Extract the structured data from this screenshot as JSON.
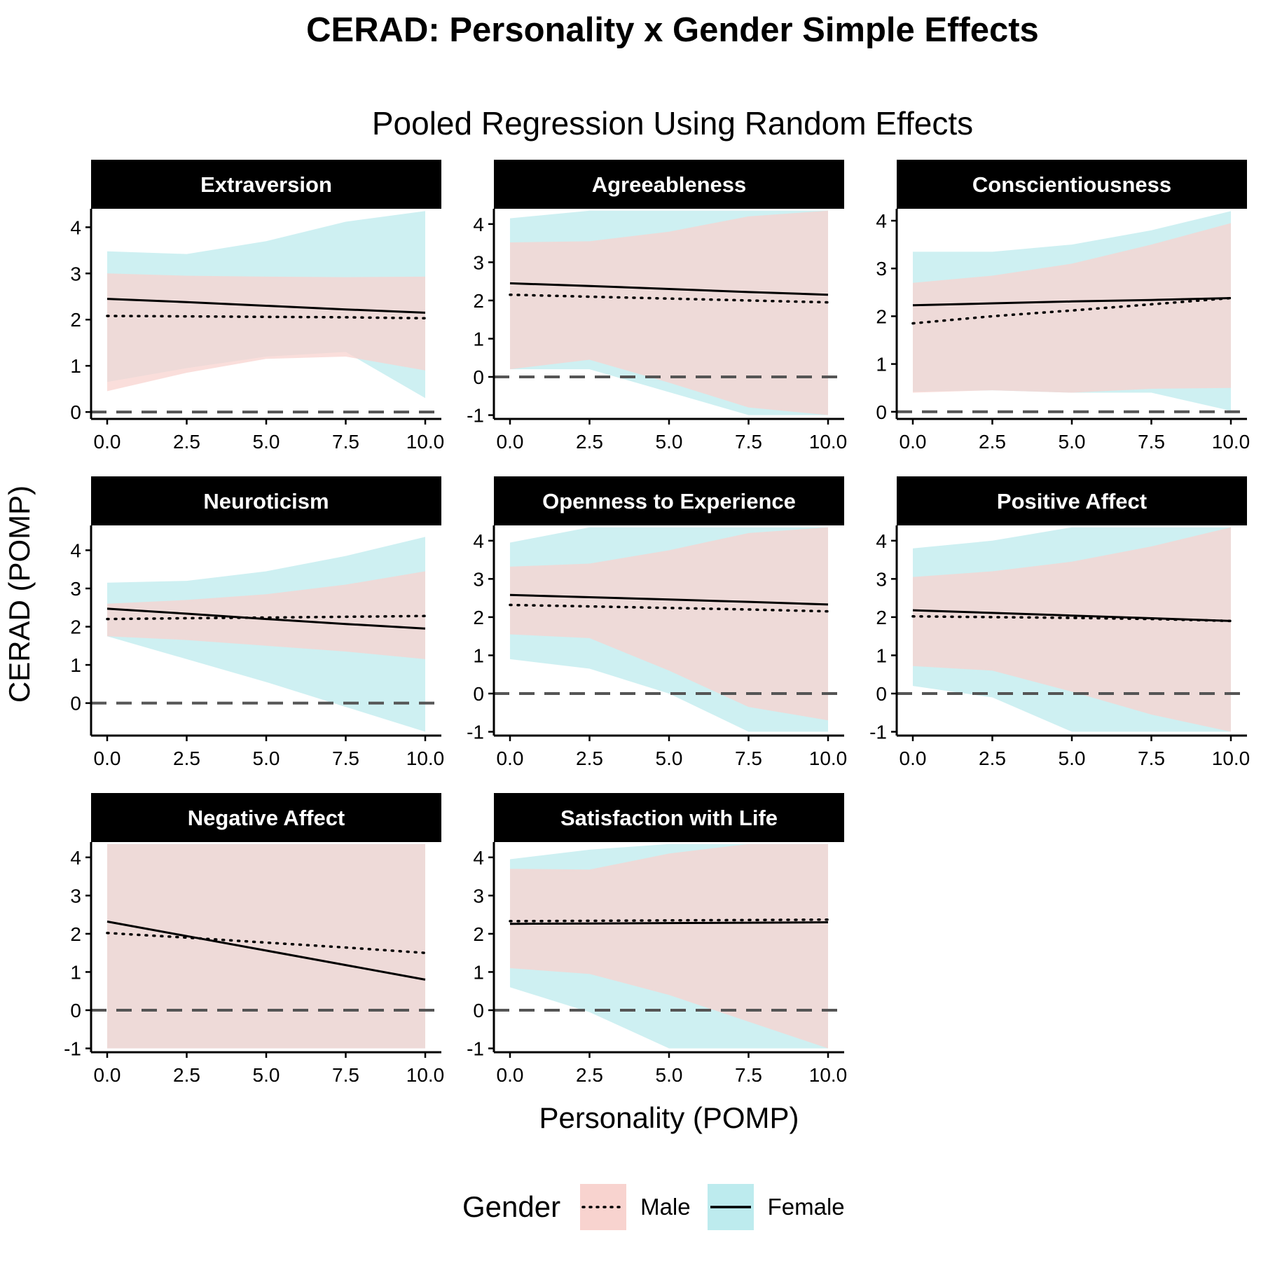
{
  "chart_data": {
    "type": "line",
    "title": "CERAD: Personality x Gender Simple Effects",
    "subtitle": "Pooled Regression Using Random Effects",
    "xlabel": "Personality (POMP)",
    "ylabel": "CERAD (POMP)",
    "xlim": [
      0,
      10
    ],
    "x_ticks": [
      "0.0",
      "2.5",
      "5.0",
      "7.5",
      "10.0"
    ],
    "reference_line": {
      "y": 0,
      "style": "dashed"
    },
    "legend": {
      "title": "Gender",
      "position": "bottom",
      "entries": [
        {
          "label": "Male",
          "line": "dotted",
          "fill": "#f8d3cf"
        },
        {
          "label": "Female",
          "line": "solid",
          "fill": "#bdebee"
        }
      ]
    },
    "grid": false,
    "panels": [
      {
        "title": "Extraversion",
        "ylim": [
          -0.15,
          4.4
        ],
        "y_ticks": [
          0,
          1,
          2,
          3,
          4
        ],
        "x": [
          0,
          2.5,
          5,
          7.5,
          10
        ],
        "male": {
          "line": [
            2.08,
            2.07,
            2.06,
            2.05,
            2.03
          ],
          "lower": [
            0.45,
            0.85,
            1.15,
            1.2,
            0.9
          ],
          "upper": [
            3.0,
            2.95,
            2.93,
            2.92,
            2.93
          ]
        },
        "female": {
          "line": [
            2.45,
            2.38,
            2.3,
            2.22,
            2.15
          ],
          "lower": [
            0.65,
            0.95,
            1.2,
            1.3,
            0.3
          ],
          "upper": [
            3.48,
            3.42,
            3.7,
            4.12,
            4.35
          ]
        }
      },
      {
        "title": "Agreeableness",
        "ylim": [
          -1.1,
          4.4
        ],
        "y_ticks": [
          -1,
          0,
          1,
          2,
          3,
          4
        ],
        "x": [
          0,
          2.5,
          5,
          7.5,
          10
        ],
        "male": {
          "line": [
            2.15,
            2.1,
            2.05,
            2.0,
            1.95
          ],
          "lower": [
            0.2,
            0.45,
            -0.15,
            -0.8,
            -1.0
          ],
          "upper": [
            3.52,
            3.55,
            3.8,
            4.2,
            4.35
          ]
        },
        "female": {
          "line": [
            2.45,
            2.38,
            2.3,
            2.22,
            2.15
          ],
          "lower": [
            0.2,
            0.2,
            -0.4,
            -1.0,
            -1.0
          ],
          "upper": [
            4.15,
            4.35,
            4.35,
            4.35,
            4.35
          ]
        }
      },
      {
        "title": "Conscientiousness",
        "ylim": [
          -0.15,
          4.25
        ],
        "y_ticks": [
          0,
          1,
          2,
          3,
          4
        ],
        "x": [
          0,
          2.5,
          5,
          7.5,
          10
        ],
        "male": {
          "line": [
            1.85,
            2.0,
            2.12,
            2.25,
            2.38
          ],
          "lower": [
            0.4,
            0.45,
            0.4,
            0.48,
            0.5
          ],
          "upper": [
            2.7,
            2.85,
            3.1,
            3.5,
            3.95
          ]
        },
        "female": {
          "line": [
            2.23,
            2.27,
            2.31,
            2.34,
            2.38
          ],
          "lower": [
            0.42,
            0.45,
            0.4,
            0.4,
            0.02
          ],
          "upper": [
            3.35,
            3.35,
            3.5,
            3.8,
            4.2
          ]
        }
      },
      {
        "title": "Neuroticism",
        "ylim": [
          -0.85,
          4.65
        ],
        "y_ticks": [
          0,
          1,
          2,
          3,
          4
        ],
        "x": [
          0,
          2.5,
          5,
          7.5,
          10
        ],
        "male": {
          "line": [
            2.2,
            2.22,
            2.24,
            2.26,
            2.28
          ],
          "lower": [
            1.75,
            1.65,
            1.5,
            1.35,
            1.15
          ],
          "upper": [
            2.6,
            2.7,
            2.85,
            3.1,
            3.45
          ]
        },
        "female": {
          "line": [
            2.47,
            2.34,
            2.2,
            2.07,
            1.95
          ],
          "lower": [
            1.75,
            1.15,
            0.55,
            -0.1,
            -0.75
          ],
          "upper": [
            3.15,
            3.2,
            3.45,
            3.85,
            4.35
          ]
        }
      },
      {
        "title": "Openness to Experience",
        "ylim": [
          -1.1,
          4.4
        ],
        "y_ticks": [
          -1,
          0,
          1,
          2,
          3,
          4
        ],
        "x": [
          0,
          2.5,
          5,
          7.5,
          10
        ],
        "male": {
          "line": [
            2.32,
            2.28,
            2.24,
            2.2,
            2.15
          ],
          "lower": [
            1.55,
            1.45,
            0.6,
            -0.35,
            -0.7
          ],
          "upper": [
            3.32,
            3.4,
            3.75,
            4.2,
            4.35
          ]
        },
        "female": {
          "line": [
            2.58,
            2.52,
            2.46,
            2.4,
            2.33
          ],
          "lower": [
            0.9,
            0.65,
            0.0,
            -1.0,
            -1.0
          ],
          "upper": [
            3.95,
            4.35,
            4.35,
            4.35,
            4.35
          ]
        }
      },
      {
        "title": "Positive Affect",
        "ylim": [
          -1.1,
          4.4
        ],
        "y_ticks": [
          -1,
          0,
          1,
          2,
          3,
          4
        ],
        "x": [
          0,
          2.5,
          5,
          7.5,
          10
        ],
        "male": {
          "line": [
            2.02,
            2.0,
            1.98,
            1.95,
            1.9
          ],
          "lower": [
            0.72,
            0.6,
            0.05,
            -0.55,
            -1.0
          ],
          "upper": [
            3.05,
            3.2,
            3.45,
            3.85,
            4.35
          ]
        },
        "female": {
          "line": [
            2.18,
            2.11,
            2.04,
            1.97,
            1.9
          ],
          "lower": [
            0.2,
            -0.1,
            -1.0,
            -1.0,
            -1.0
          ],
          "upper": [
            3.8,
            4.0,
            4.35,
            4.35,
            4.35
          ]
        }
      },
      {
        "title": "Negative Affect",
        "ylim": [
          -1.1,
          4.4
        ],
        "y_ticks": [
          -1,
          0,
          1,
          2,
          3,
          4
        ],
        "x": [
          0,
          2.5,
          5,
          7.5,
          10
        ],
        "male": {
          "line": [
            2.02,
            1.9,
            1.77,
            1.64,
            1.5
          ],
          "lower": [
            -1.0,
            -1.0,
            -1.0,
            -1.0,
            -1.0
          ],
          "upper": [
            4.35,
            4.35,
            4.35,
            4.35,
            4.35
          ]
        },
        "female": {
          "line": [
            2.32,
            1.94,
            1.56,
            1.18,
            0.8
          ],
          "lower": [
            -1.0,
            -1.0,
            -1.0,
            -1.0,
            -1.0
          ],
          "upper": [
            4.35,
            4.35,
            4.35,
            4.35,
            4.35
          ]
        }
      },
      {
        "title": "Satisfaction with Life",
        "ylim": [
          -1.1,
          4.4
        ],
        "y_ticks": [
          -1,
          0,
          1,
          2,
          3,
          4
        ],
        "x": [
          0,
          2.5,
          5,
          7.5,
          10
        ],
        "male": {
          "line": [
            2.33,
            2.34,
            2.35,
            2.36,
            2.37
          ],
          "lower": [
            1.1,
            0.95,
            0.4,
            -0.3,
            -1.0
          ],
          "upper": [
            3.7,
            3.68,
            4.1,
            4.35,
            4.35
          ]
        },
        "female": {
          "line": [
            2.26,
            2.27,
            2.28,
            2.29,
            2.3
          ],
          "lower": [
            0.6,
            -0.05,
            -1.0,
            -1.0,
            -1.0
          ],
          "upper": [
            3.95,
            4.2,
            4.35,
            4.35,
            4.35
          ]
        }
      }
    ]
  },
  "colors": {
    "male_ribbon": "#f8d3cf",
    "female_ribbon": "#bdebee",
    "overlap": "#bfd8d4",
    "strip_bg": "#000000",
    "strip_text": "#ffffff",
    "zero_line": "#555555"
  }
}
